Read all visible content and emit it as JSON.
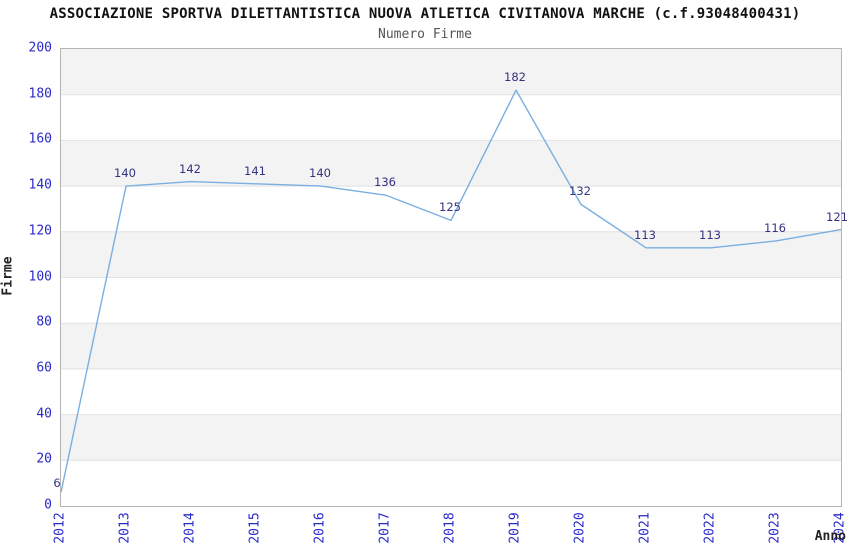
{
  "chart_data": {
    "type": "line",
    "title": "ASSOCIAZIONE SPORTVA DILETTANTISTICA NUOVA ATLETICA CIVITANOVA MARCHE (c.f.93048400431)",
    "subtitle": "Numero Firme",
    "xlabel": "Anno",
    "ylabel": "Firme",
    "categories": [
      "2012",
      "2013",
      "2014",
      "2015",
      "2016",
      "2017",
      "2018",
      "2019",
      "2020",
      "2021",
      "2022",
      "2023",
      "2024"
    ],
    "values": [
      6,
      140,
      142,
      141,
      140,
      136,
      125,
      182,
      132,
      113,
      113,
      116,
      121
    ],
    "ylim": [
      0,
      200
    ],
    "yticks": [
      0,
      20,
      40,
      60,
      80,
      100,
      120,
      140,
      160,
      180,
      200
    ],
    "grid": "horizontal-bands",
    "legend": "none",
    "colors": {
      "line": "#7aafe0",
      "value_label": "#333380",
      "tick_label": "#2a2ac8",
      "band": "#f3f3f3",
      "grid_line": "#e2e2e2",
      "plot_border": "#b4b4b4",
      "title": "#111111",
      "subtitle": "#555555",
      "axis_title": "#222222",
      "background": "#ffffff"
    }
  }
}
